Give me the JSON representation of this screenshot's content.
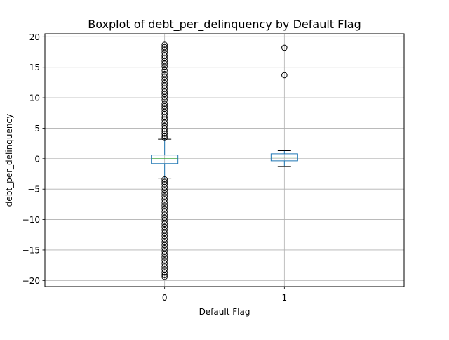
{
  "chart_data": {
    "type": "boxplot",
    "title": "Boxplot of debt_per_delinquency by Default Flag",
    "xlabel": "Default Flag",
    "ylabel": "debt_per_delinquency",
    "categories": [
      "0",
      "1"
    ],
    "ylim": [
      -21,
      20.5
    ],
    "yticks": [
      -20,
      -15,
      -10,
      -5,
      0,
      5,
      10,
      15,
      20
    ],
    "grid": true,
    "colors": {
      "box": "#1f77b4",
      "median": "#2ca02c",
      "grid": "#b0b0b0",
      "outlier": "#000000"
    },
    "boxes": [
      {
        "category": "0",
        "whisker_low": -3.2,
        "q1": -0.8,
        "median": 0.0,
        "q3": 0.6,
        "whisker_high": 3.2,
        "outliers": [
          18.7,
          18.3,
          17.9,
          17.4,
          16.9,
          16.5,
          16.0,
          15.6,
          15.1,
          14.5,
          13.9,
          13.4,
          12.9,
          12.4,
          12.0,
          11.5,
          11.0,
          10.6,
          10.1,
          9.6,
          9.0,
          8.6,
          8.2,
          7.7,
          7.3,
          6.8,
          6.4,
          5.9,
          5.4,
          4.9,
          4.5,
          4.1,
          3.7,
          3.4,
          -3.4,
          -3.8,
          -4.2,
          -4.7,
          -5.2,
          -5.7,
          -6.2,
          -6.7,
          -7.2,
          -7.7,
          -8.2,
          -8.7,
          -9.2,
          -9.7,
          -10.2,
          -10.7,
          -11.2,
          -11.7,
          -12.2,
          -12.7,
          -13.2,
          -13.7,
          -14.2,
          -14.7,
          -15.2,
          -15.7,
          -16.2,
          -16.7,
          -17.2,
          -17.7,
          -18.2,
          -18.7,
          -19.1,
          -19.4
        ]
      },
      {
        "category": "1",
        "whisker_low": -1.3,
        "q1": -0.35,
        "median": 0.25,
        "q3": 0.8,
        "whisker_high": 1.3,
        "outliers": [
          18.2,
          13.7
        ]
      }
    ]
  }
}
